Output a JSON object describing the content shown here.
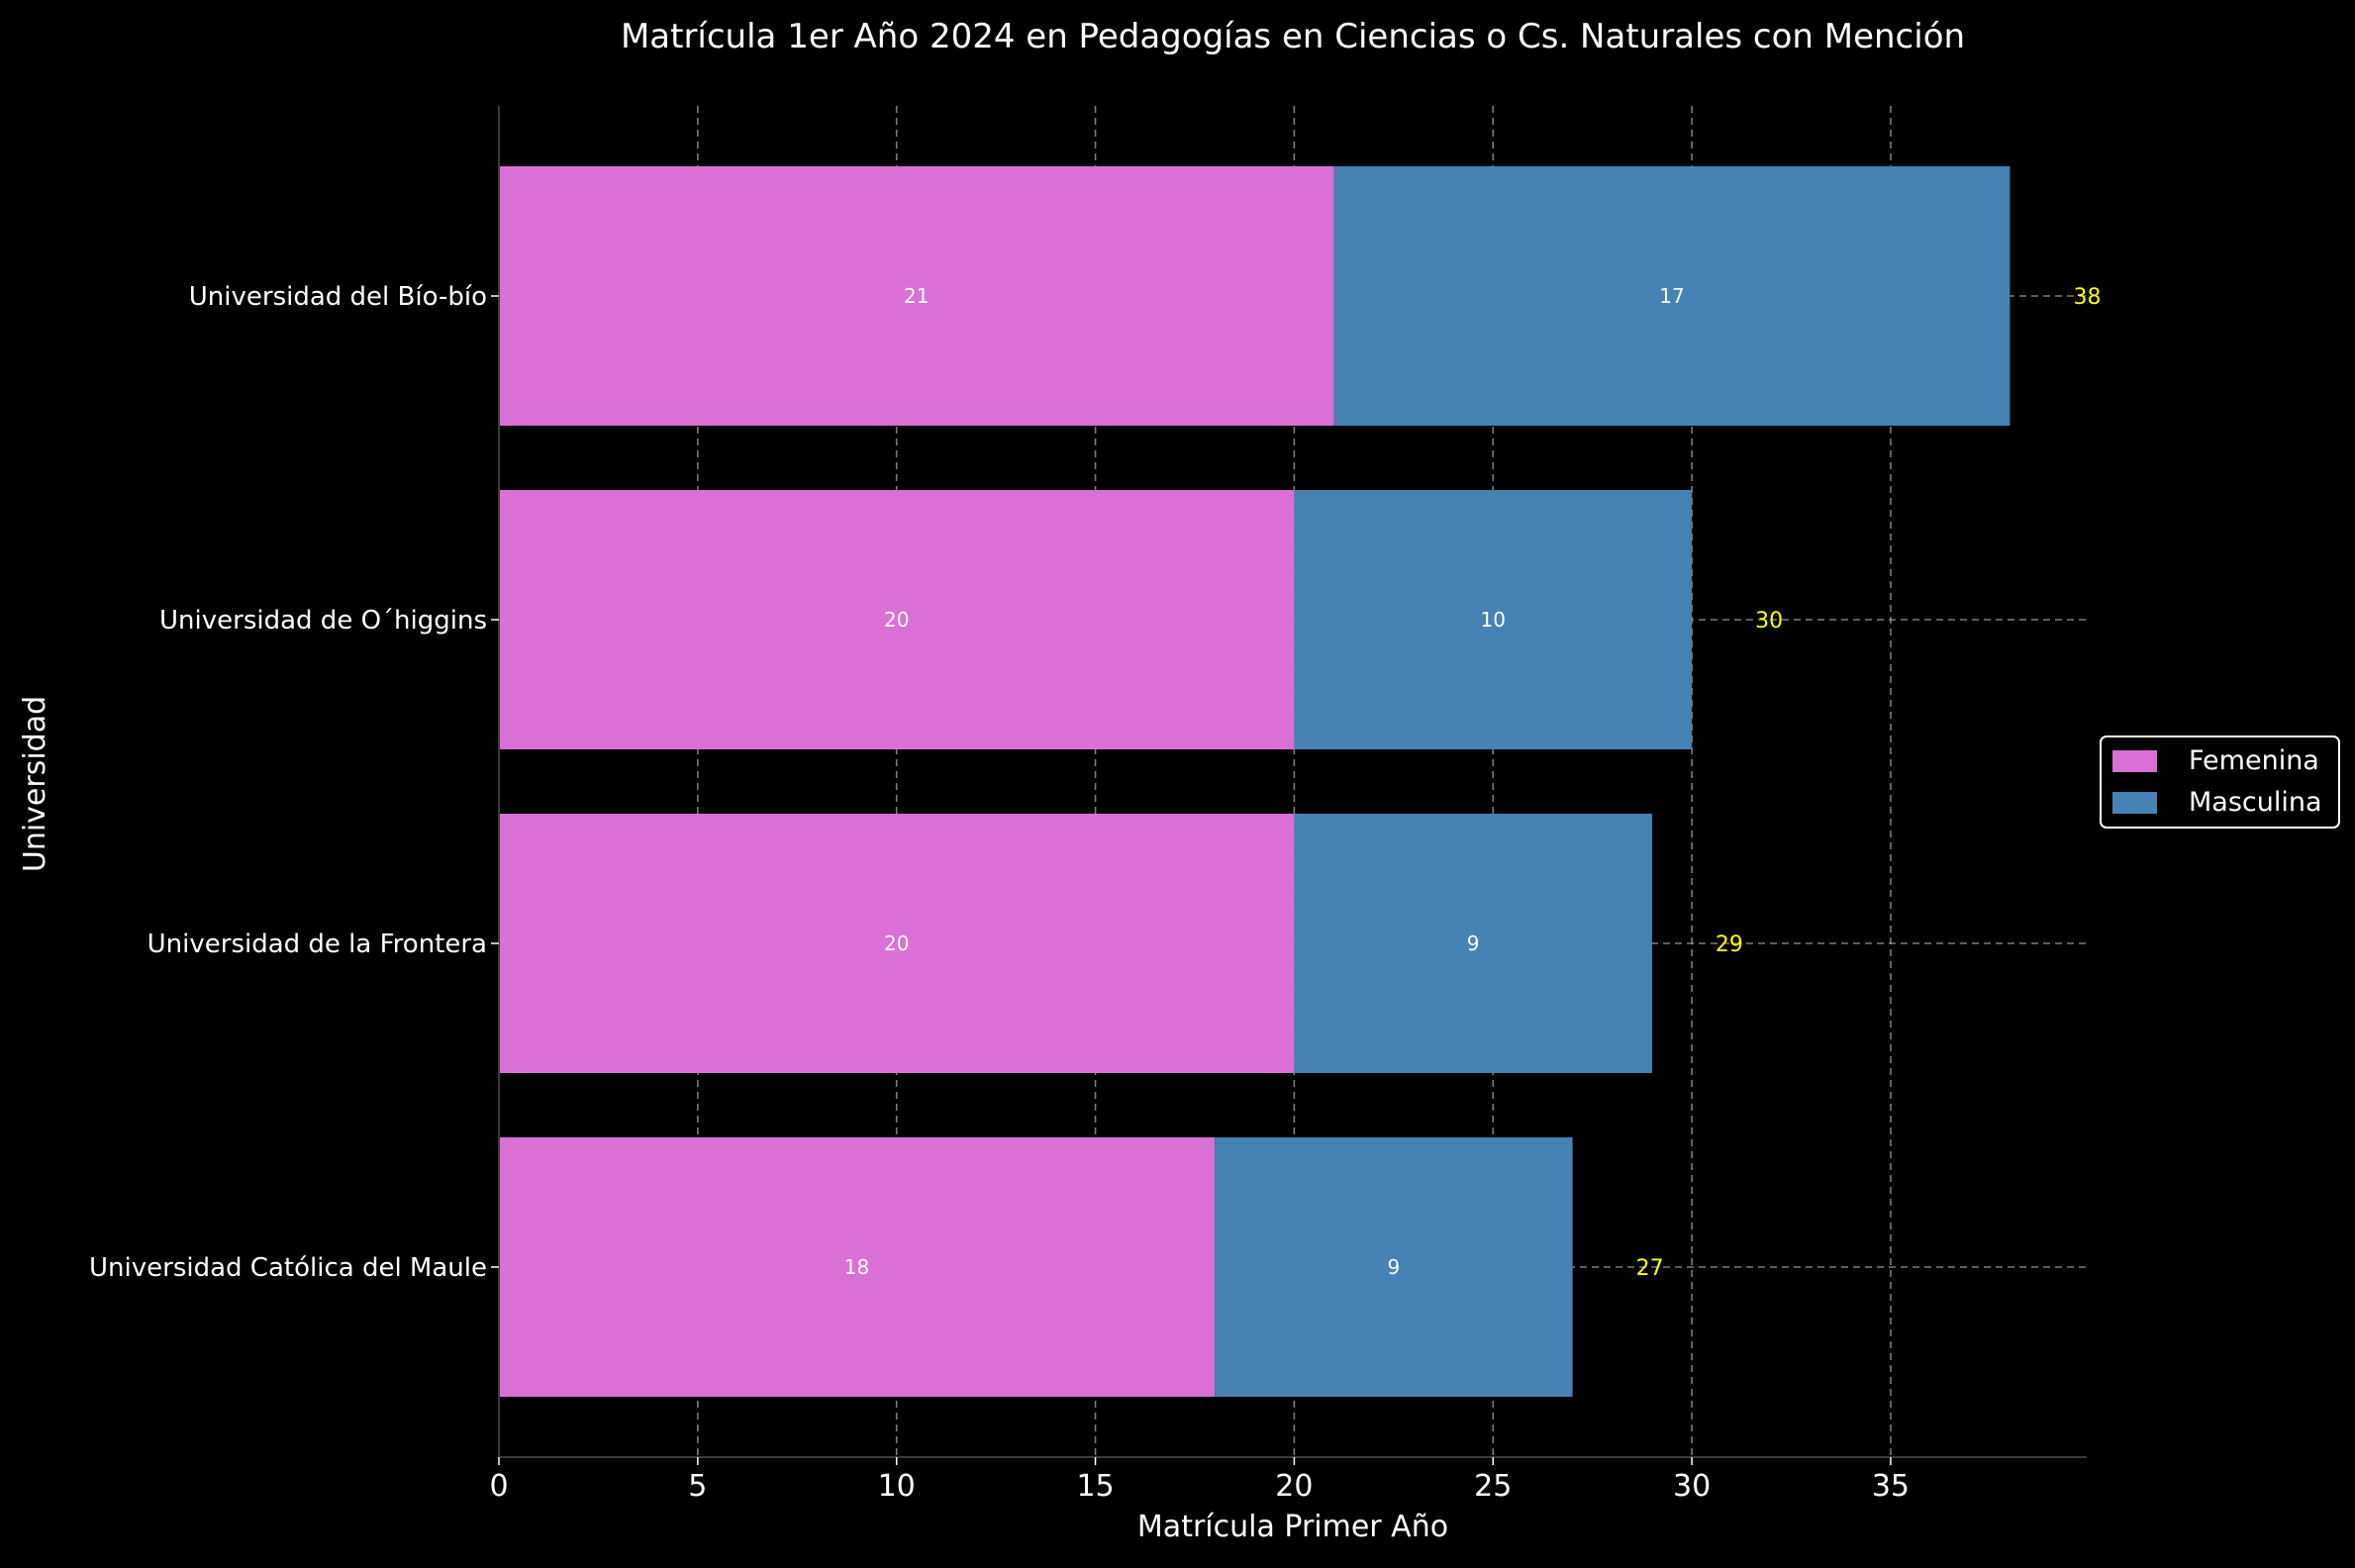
{
  "chart_data": {
    "type": "bar",
    "orientation": "horizontal",
    "stacked": true,
    "title": "Matrícula 1er Año 2024 en Pedagogías en Ciencias o Cs. Naturales con Mención",
    "xlabel": "Matrícula Primer Año",
    "ylabel": "Universidad",
    "categories": [
      "Universidad del Bío-bío",
      "Universidad de O´higgins",
      "Universidad de la Frontera",
      "Universidad Católica del Maule"
    ],
    "series": [
      {
        "name": "Femenina",
        "color": "#da70d6",
        "values": [
          21,
          20,
          20,
          18
        ]
      },
      {
        "name": "Masculina",
        "color": "#4682b4",
        "values": [
          17,
          10,
          9,
          9
        ]
      }
    ],
    "totals": [
      38,
      30,
      29,
      27
    ],
    "total_label_color": "#ffff00",
    "segment_label_color": "#ffffff",
    "xlim": [
      0,
      40
    ],
    "xticks": [
      0,
      5,
      10,
      15,
      20,
      25,
      30,
      35
    ],
    "grid": true,
    "legend_position": "right",
    "background": "#000000",
    "text_color": "#ffffff"
  }
}
